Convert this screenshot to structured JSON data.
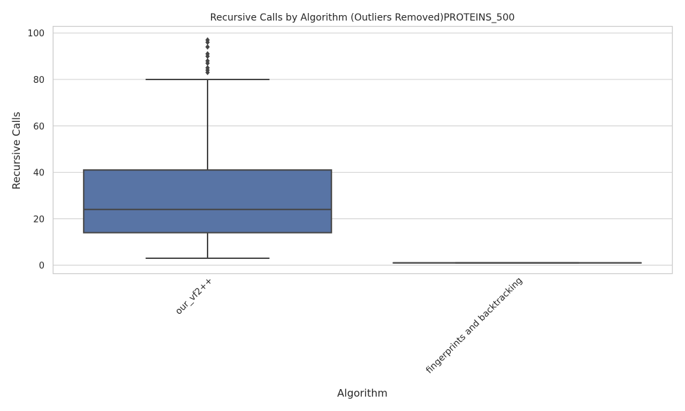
{
  "chart_data": {
    "type": "box",
    "title": "Recursive Calls by Algorithm (Outliers Removed)PROTEINS_500",
    "xlabel": "Algorithm",
    "ylabel": "Recursive Calls",
    "ylim": [
      -3.5,
      103
    ],
    "yticks": [
      0,
      20,
      40,
      60,
      80,
      100
    ],
    "grid": true,
    "categories": [
      "our_vf2++",
      "fingerprints and backtracking"
    ],
    "boxes": [
      {
        "category": "our_vf2++",
        "whisker_low": 3,
        "q1": 14,
        "median": 24,
        "q3": 41,
        "whisker_high": 80,
        "outliers": [
          83,
          84,
          85,
          87,
          88,
          90,
          91,
          94,
          96,
          97
        ]
      },
      {
        "category": "fingerprints and backtracking",
        "whisker_low": 1,
        "q1": 1,
        "median": 1,
        "q3": 1,
        "whisker_high": 1,
        "outliers": []
      }
    ],
    "colors": {
      "box_fill": "#5874a5",
      "line": "#454545",
      "grid": "#d4d4d4",
      "frame": "#cccccc"
    }
  }
}
